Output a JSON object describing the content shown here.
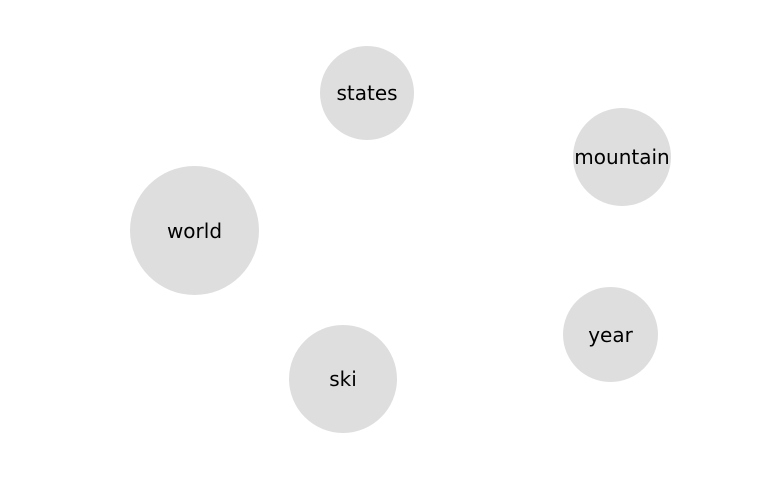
{
  "bubbles": {
    "states": {
      "label": "states"
    },
    "mountain": {
      "label": "mountain"
    },
    "world": {
      "label": "world"
    },
    "year": {
      "label": "year"
    },
    "ski": {
      "label": "ski"
    }
  },
  "colors": {
    "background": "#ffffff",
    "bubble_fill": "#dedede",
    "label_text": "#000000"
  }
}
